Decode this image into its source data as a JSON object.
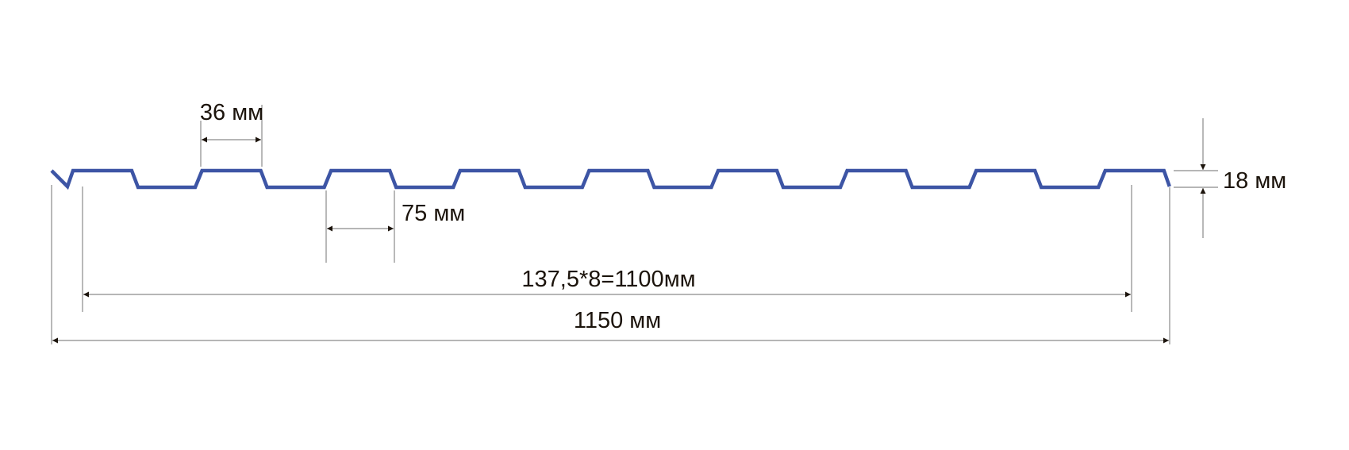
{
  "colors": {
    "profile": "#3d55a5",
    "dimension_lines": "#8a8a8a",
    "text": "#1c140c"
  },
  "profile": {
    "ribs": 9
  },
  "dimensions": {
    "rib_top_width": "36 мм",
    "rib_bottom_width": "75 мм",
    "rib_height": "18 мм",
    "effective_width": "137,5*8=1100мм",
    "total_width": "1150 мм"
  }
}
